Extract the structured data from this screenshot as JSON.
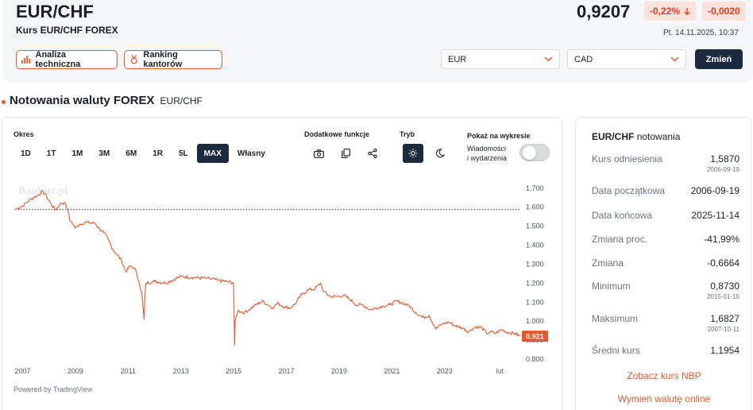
{
  "header": {
    "title": "EUR/CHF",
    "subtitle": "Kurs EUR/CHF FOREX",
    "price": "0,9207",
    "change_pct": "-0,22%",
    "change_abs": "-0,0020",
    "timestamp": "Pt. 14.11.2025, 10:37",
    "tech_analysis_label": "Analiza techniczna",
    "ranking_label": "Ranking kantorów",
    "from_currency": "EUR",
    "to_currency": "CAD",
    "change_button": "Zmień",
    "accent_color": "#e4582b",
    "down_color": "#dd3a1a"
  },
  "section": {
    "title": "Notowania waluty FOREX",
    "subtitle": "EUR/CHF"
  },
  "chart_panel": {
    "period_label": "Okres",
    "periods": [
      "1D",
      "1T",
      "1M",
      "3M",
      "6M",
      "1R",
      "5L",
      "MAX",
      "Własny"
    ],
    "active_period": "MAX",
    "extra_label": "Dodatkowe funkcje",
    "mode_label": "Tryb",
    "show_label": "Pokaż na wykresie",
    "news_line1": "Wiadomości",
    "news_line2": "i wydarzenia",
    "watermark": "Bankier.pl",
    "powered_by": "Powered by TradingView",
    "news_toggle_on": false
  },
  "chart_data": {
    "type": "line",
    "series": [
      {
        "values": [
          [
            "2006-09-19",
            1.587
          ],
          [
            "2006-11-01",
            1.596
          ],
          [
            "2007-01-01",
            1.606
          ],
          [
            "2007-03-01",
            1.625
          ],
          [
            "2007-05-01",
            1.645
          ],
          [
            "2007-07-01",
            1.655
          ],
          [
            "2007-10-11",
            1.6827
          ],
          [
            "2007-12-01",
            1.655
          ],
          [
            "2008-02-01",
            1.615
          ],
          [
            "2008-04-01",
            1.585
          ],
          [
            "2008-06-01",
            1.615
          ],
          [
            "2008-08-01",
            1.625
          ],
          [
            "2008-09-15",
            1.59
          ],
          [
            "2008-10-15",
            1.53
          ],
          [
            "2008-11-15",
            1.52
          ],
          [
            "2009-01-01",
            1.49
          ],
          [
            "2009-03-01",
            1.51
          ],
          [
            "2009-06-01",
            1.52
          ],
          [
            "2009-10-01",
            1.515
          ],
          [
            "2009-12-01",
            1.485
          ],
          [
            "2010-02-01",
            1.465
          ],
          [
            "2010-04-01",
            1.43
          ],
          [
            "2010-06-01",
            1.38
          ],
          [
            "2010-08-01",
            1.35
          ],
          [
            "2010-10-01",
            1.32
          ],
          [
            "2010-12-01",
            1.26
          ],
          [
            "2011-02-01",
            1.29
          ],
          [
            "2011-04-01",
            1.28
          ],
          [
            "2011-06-01",
            1.21
          ],
          [
            "2011-07-15",
            1.13
          ],
          [
            "2011-08-09",
            1.01
          ],
          [
            "2011-08-20",
            1.12
          ],
          [
            "2011-09-06",
            1.2
          ],
          [
            "2012-01-01",
            1.21
          ],
          [
            "2012-06-01",
            1.201
          ],
          [
            "2013-01-01",
            1.235
          ],
          [
            "2013-06-01",
            1.23
          ],
          [
            "2014-01-01",
            1.225
          ],
          [
            "2014-06-01",
            1.215
          ],
          [
            "2014-12-31",
            1.202
          ],
          [
            "2015-01-15",
            0.873
          ],
          [
            "2015-01-22",
            1.0
          ],
          [
            "2015-03-01",
            1.055
          ],
          [
            "2015-06-01",
            1.045
          ],
          [
            "2015-08-01",
            1.06
          ],
          [
            "2015-11-01",
            1.085
          ],
          [
            "2016-02-01",
            1.105
          ],
          [
            "2016-06-24",
            1.07
          ],
          [
            "2016-09-01",
            1.095
          ],
          [
            "2016-12-01",
            1.075
          ],
          [
            "2017-03-01",
            1.07
          ],
          [
            "2017-05-01",
            1.09
          ],
          [
            "2017-08-01",
            1.14
          ],
          [
            "2017-11-01",
            1.165
          ],
          [
            "2018-02-01",
            1.17
          ],
          [
            "2018-04-20",
            1.2
          ],
          [
            "2018-06-01",
            1.155
          ],
          [
            "2018-09-01",
            1.13
          ],
          [
            "2018-12-01",
            1.13
          ],
          [
            "2019-03-01",
            1.135
          ],
          [
            "2019-06-01",
            1.115
          ],
          [
            "2019-09-01",
            1.085
          ],
          [
            "2019-12-01",
            1.085
          ],
          [
            "2020-03-01",
            1.06
          ],
          [
            "2020-06-01",
            1.07
          ],
          [
            "2020-09-01",
            1.08
          ],
          [
            "2020-12-01",
            1.085
          ],
          [
            "2021-03-01",
            1.105
          ],
          [
            "2021-06-01",
            1.095
          ],
          [
            "2021-09-01",
            1.08
          ],
          [
            "2021-12-01",
            1.045
          ],
          [
            "2022-03-01",
            1.02
          ],
          [
            "2022-06-01",
            1.03
          ],
          [
            "2022-09-01",
            0.96
          ],
          [
            "2022-12-01",
            0.985
          ],
          [
            "2023-03-01",
            0.995
          ],
          [
            "2023-06-01",
            0.975
          ],
          [
            "2023-09-01",
            0.965
          ],
          [
            "2023-12-01",
            0.945
          ],
          [
            "2024-03-01",
            0.97
          ],
          [
            "2024-06-01",
            0.965
          ],
          [
            "2024-08-05",
            0.935
          ],
          [
            "2024-10-01",
            0.945
          ],
          [
            "2024-12-01",
            0.935
          ],
          [
            "2025-03-01",
            0.955
          ],
          [
            "2025-06-01",
            0.94
          ],
          [
            "2025-09-01",
            0.935
          ],
          [
            "2025-11-14",
            0.9207
          ]
        ]
      }
    ],
    "x_ticks": [
      "2007",
      "2009",
      "2011",
      "2013",
      "2015",
      "2017",
      "2019",
      "2021",
      "2023",
      "lut"
    ],
    "y_ticks": [
      "1.700",
      "1.600",
      "1.500",
      "1.400",
      "1.300",
      "1.200",
      "1.100",
      "1.000",
      "0.900",
      "0.800"
    ],
    "ylim": [
      0.8,
      1.72
    ],
    "reference_line": 1.587,
    "last_label": "0.921",
    "line_color": "#e4582b",
    "grid": false
  },
  "stats": {
    "title_pair": "EUR/CHF",
    "title_suffix": "notowania",
    "rows": [
      {
        "label": "Kurs odniesienia",
        "value": "1,5870",
        "date": "2006-09-19"
      },
      {
        "label": "Data początkowa",
        "value": "2006-09-19"
      },
      {
        "label": "Data końcowa",
        "value": "2025-11-14"
      },
      {
        "label": "Zmiana proc.",
        "value": "-41,99%"
      },
      {
        "label": "Zmiana",
        "value": "-0,6664"
      },
      {
        "label": "Minimum",
        "value": "0,8730",
        "date": "2015-01-15"
      },
      {
        "label": "Maksimum",
        "value": "1,6827",
        "date": "2007-10-11"
      },
      {
        "label": "Średni kurs",
        "value": "1,1954"
      }
    ],
    "link_nbp": "Zobacz kurs NBP",
    "link_exchange": "Wymień walutę online"
  }
}
